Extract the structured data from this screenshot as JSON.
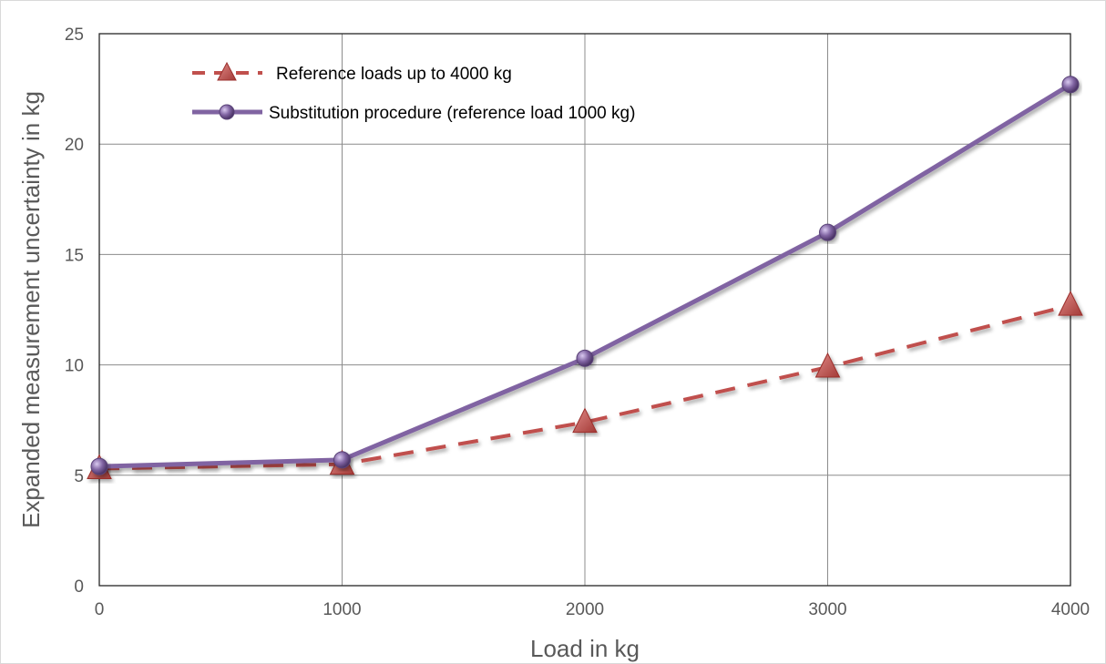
{
  "chart_data": {
    "type": "line",
    "x": [
      0,
      1000,
      2000,
      3000,
      4000
    ],
    "series": [
      {
        "name": "Reference loads up to 4000 kg",
        "values": [
          5.3,
          5.5,
          7.4,
          9.9,
          12.7
        ],
        "color": "#c0504d",
        "line_style": "dashed",
        "marker": "triangle"
      },
      {
        "name": "Substitution procedure (reference load 1000 kg)",
        "values": [
          5.4,
          5.7,
          10.3,
          16.0,
          22.7
        ],
        "color": "#8064a2",
        "line_style": "solid",
        "marker": "circle"
      }
    ],
    "xlabel": "Load in kg",
    "ylabel": "Expanded measurement uncertainty in kg",
    "xlim": [
      0,
      4000
    ],
    "ylim": [
      0,
      25
    ],
    "xticks": [
      "0",
      "1000",
      "2000",
      "3000",
      "4000"
    ],
    "yticks": [
      "0",
      "5",
      "10",
      "15",
      "20",
      "25"
    ],
    "grid": true,
    "legend_position": "top-left"
  }
}
